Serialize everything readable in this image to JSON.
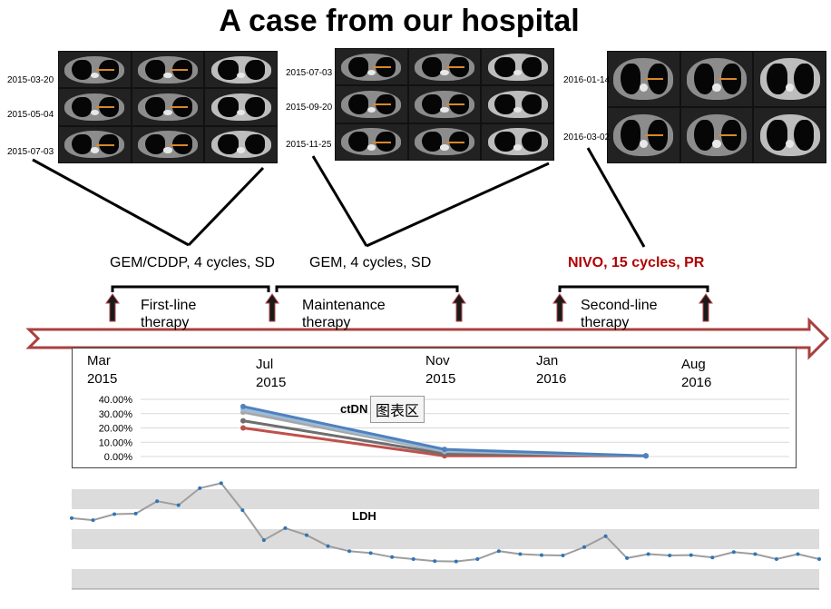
{
  "title": "A case from our hospital",
  "scan_groups": [
    {
      "dates": [
        "2015-03-20",
        "2015-05-04",
        "2015-07-03"
      ]
    },
    {
      "dates": [
        "2015-07-03",
        "2015-09-20",
        "2015-11-25"
      ]
    },
    {
      "dates": [
        "2016-01-14",
        "2016-03-02"
      ]
    }
  ],
  "phases": [
    {
      "regimen": "GEM/CDDP, 4 cycles, SD",
      "label": "First-line therapy"
    },
    {
      "regimen": "GEM, 4 cycles, SD",
      "label": "Maintenance therapy"
    },
    {
      "regimen": "NIVO, 15 cycles, PR",
      "label": "Second-line therapy",
      "color": "#b00000"
    }
  ],
  "months": [
    "Mar 2015",
    "Jul 2015",
    "Nov 2015",
    "Jan 2016",
    "Aug 2016"
  ],
  "colors": {
    "arrow_border": "#a8403f",
    "ctdna_red": "#c0504d",
    "ctdna_blue": "#4f81bd",
    "ldh_line": "#9e9e9e",
    "ldh_marker": "#2e75b6"
  },
  "chart_data": [
    {
      "type": "line",
      "title": "ctDN",
      "overlay_label": "图表区",
      "y_ticks": [
        "40.00%",
        "30.00%",
        "20.00%",
        "10.00%",
        "0.00%"
      ],
      "ylim": [
        0,
        40
      ],
      "x": [
        "Jul 2015",
        "Nov 2015",
        "Jan 2016"
      ],
      "series": [
        {
          "values": [
            35,
            5,
            0.5
          ],
          "color": "#4f81bd"
        },
        {
          "values": [
            33,
            4,
            0.5
          ],
          "color": "#9bbbd9"
        },
        {
          "values": [
            31,
            3.5,
            0.5
          ],
          "color": "#a6a6a6"
        },
        {
          "values": [
            25,
            2,
            0.5
          ],
          "color": "#6e6e6e"
        },
        {
          "values": [
            20,
            0.5,
            0.5
          ],
          "color": "#c0504d"
        }
      ]
    },
    {
      "type": "line",
      "title": "LDH",
      "ylim": [
        0,
        600
      ],
      "values": [
        355,
        345,
        375,
        378,
        440,
        420,
        505,
        530,
        395,
        245,
        305,
        270,
        215,
        190,
        180,
        160,
        150,
        140,
        138,
        150,
        190,
        175,
        170,
        168,
        210,
        265,
        155,
        175,
        168,
        170,
        158,
        185,
        175,
        150,
        175,
        150
      ]
    }
  ]
}
